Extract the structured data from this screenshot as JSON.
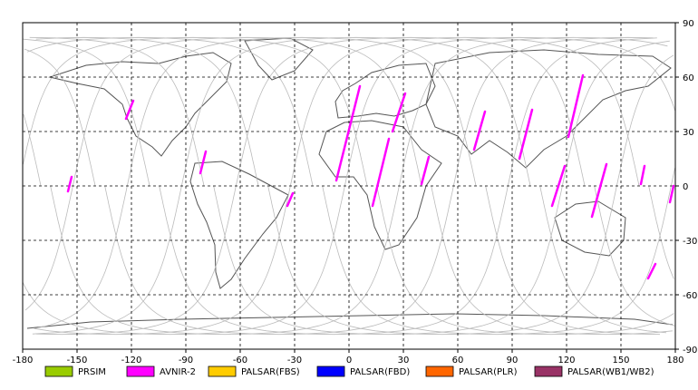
{
  "map": {
    "lon_range": [
      -180,
      180
    ],
    "lat_range": [
      -90,
      90
    ],
    "lon_ticks": [
      "-180",
      "-150",
      "-120",
      "-90",
      "-60",
      "-30",
      "0",
      "30",
      "60",
      "90",
      "120",
      "150",
      "180"
    ],
    "lat_ticks": [
      "90",
      "60",
      "30",
      "0",
      "-30",
      "-60",
      "-90"
    ],
    "grid": "dashed"
  },
  "legend": [
    {
      "label": "PRSIM",
      "color": "#99cc00"
    },
    {
      "label": "AVNIR-2",
      "color": "#ff00ff"
    },
    {
      "label": "PALSAR(FBS)",
      "color": "#ffcc00"
    },
    {
      "label": "PALSAR(FBD)",
      "color": "#0000ff"
    },
    {
      "label": "PALSAR(PLR)",
      "color": "#ff6600"
    },
    {
      "label": "PALSAR(WB1/WB2)",
      "color": "#993366"
    }
  ],
  "segments": [
    {
      "sensor": "AVNIR-2",
      "from": [
        -155,
        -3
      ],
      "to": [
        -153,
        5
      ]
    },
    {
      "sensor": "AVNIR-2",
      "from": [
        -123,
        37
      ],
      "to": [
        -119,
        47
      ]
    },
    {
      "sensor": "AVNIR-2",
      "from": [
        -82,
        7
      ],
      "to": [
        -79,
        19
      ]
    },
    {
      "sensor": "AVNIR-2",
      "from": [
        -34,
        -11
      ],
      "to": [
        -31,
        -4
      ]
    },
    {
      "sensor": "AVNIR-2",
      "from": [
        -7,
        3
      ],
      "to": [
        6,
        55
      ]
    },
    {
      "sensor": "AVNIR-2",
      "from": [
        13,
        -11
      ],
      "to": [
        22,
        26
      ]
    },
    {
      "sensor": "AVNIR-2",
      "from": [
        24,
        30
      ],
      "to": [
        31,
        51
      ]
    },
    {
      "sensor": "AVNIR-2",
      "from": [
        40,
        1
      ],
      "to": [
        44,
        16
      ]
    },
    {
      "sensor": "AVNIR-2",
      "from": [
        69,
        20
      ],
      "to": [
        75,
        41
      ]
    },
    {
      "sensor": "AVNIR-2",
      "from": [
        94,
        15
      ],
      "to": [
        101,
        42
      ]
    },
    {
      "sensor": "AVNIR-2",
      "from": [
        112,
        -11
      ],
      "to": [
        119,
        11
      ]
    },
    {
      "sensor": "AVNIR-2",
      "from": [
        121,
        27
      ],
      "to": [
        129,
        61
      ]
    },
    {
      "sensor": "AVNIR-2",
      "from": [
        134,
        -17
      ],
      "to": [
        142,
        12
      ]
    },
    {
      "sensor": "AVNIR-2",
      "from": [
        161,
        1
      ],
      "to": [
        163,
        11
      ]
    },
    {
      "sensor": "AVNIR-2",
      "from": [
        165,
        -51
      ],
      "to": [
        169,
        -43
      ]
    },
    {
      "sensor": "AVNIR-2",
      "from": [
        177,
        -9
      ],
      "to": [
        179,
        0
      ]
    }
  ]
}
